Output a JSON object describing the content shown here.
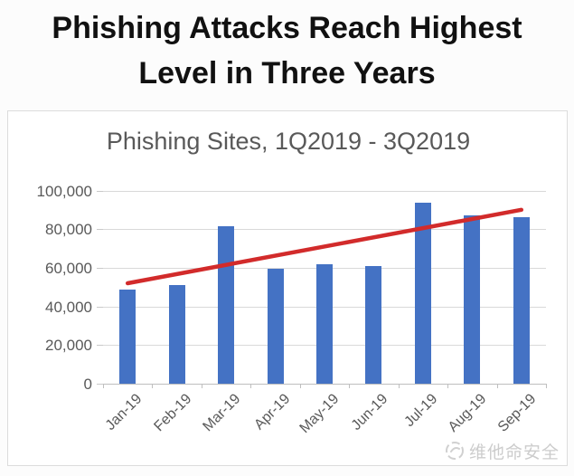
{
  "page": {
    "title_line1": "Phishing Attacks Reach Highest",
    "title_line2": "Level in Three Years"
  },
  "chart_data": {
    "type": "bar",
    "title": "Phishing Sites, 1Q2019 - 3Q2019",
    "categories": [
      "Jan-19",
      "Feb-19",
      "Mar-19",
      "Apr-19",
      "May-19",
      "Jun-19",
      "Jul-19",
      "Aug-19",
      "Sep-19"
    ],
    "values": [
      48500,
      51000,
      81500,
      59500,
      61800,
      61000,
      93500,
      87000,
      86000
    ],
    "xlabel": "",
    "ylabel": "",
    "ylim": [
      0,
      100000
    ],
    "ytick_interval": 20000,
    "ytick_labels": [
      "0",
      "20,000",
      "40,000",
      "60,000",
      "80,000",
      "100,000"
    ],
    "grid": true,
    "legend": "none",
    "bar_color": "#4472c4",
    "grid_color": "#d9d9d9",
    "axis_text_color": "#595959",
    "trendline": {
      "type": "linear",
      "color": "#d22b2b",
      "start_value": 52000,
      "end_value": 90000
    }
  },
  "watermark": {
    "icon": "swirl-logo-icon",
    "text": "维他命安全",
    "color": "#c7c7c7"
  }
}
